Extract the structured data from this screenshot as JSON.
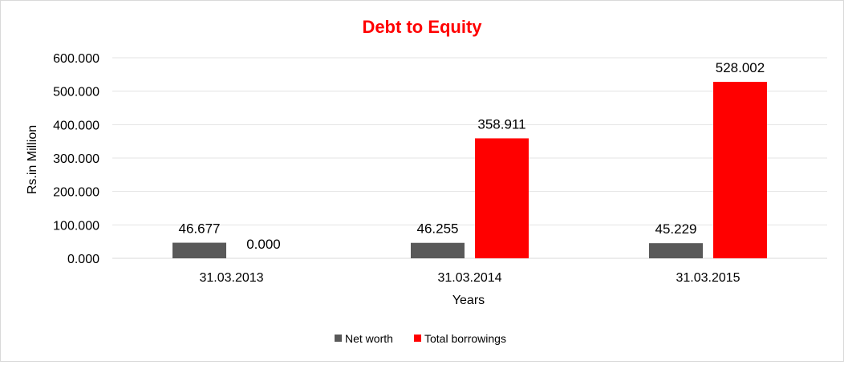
{
  "chart_data": {
    "type": "bar",
    "title": "Debt to Equity",
    "xlabel": "Years",
    "ylabel": "Rs.in Million",
    "categories": [
      "31.03.2013",
      "31.03.2014",
      "31.03.2015"
    ],
    "series": [
      {
        "name": "Net worth",
        "values": [
          46.677,
          46.255,
          45.229
        ],
        "color": "#595959"
      },
      {
        "name": "Total borrowings",
        "values": [
          0.0,
          358.911,
          528.002
        ],
        "color": "#ff0000"
      }
    ],
    "ylim": [
      0,
      600
    ],
    "yticks": [
      "0.000",
      "100.000",
      "200.000",
      "300.000",
      "400.000",
      "500.000",
      "600.000"
    ],
    "data_labels": [
      [
        "46.677",
        "46.255",
        "45.229"
      ],
      [
        "0.000",
        "358.911",
        "528.002"
      ]
    ],
    "grid": true,
    "legend": "bottom",
    "title_color": "#ff0000"
  }
}
